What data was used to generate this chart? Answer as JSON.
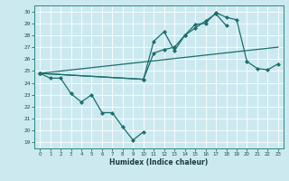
{
  "xlabel": "Humidex (Indice chaleur)",
  "background_color": "#cce9f0",
  "grid_color": "#ffffff",
  "line_color": "#1a6e6a",
  "xlim": [
    -0.5,
    23.5
  ],
  "ylim": [
    18.5,
    30.5
  ],
  "yticks": [
    19,
    20,
    21,
    22,
    23,
    24,
    25,
    26,
    27,
    28,
    29,
    30
  ],
  "xticks": [
    0,
    1,
    2,
    3,
    4,
    5,
    6,
    7,
    8,
    9,
    10,
    11,
    12,
    13,
    14,
    15,
    16,
    17,
    18,
    19,
    20,
    21,
    22,
    23
  ],
  "line1_x": [
    0,
    1,
    2,
    3,
    4,
    5,
    6,
    7,
    8,
    9,
    10
  ],
  "line1_y": [
    24.8,
    24.4,
    24.4,
    23.1,
    22.4,
    23.0,
    21.5,
    21.5,
    20.3,
    19.2,
    19.9
  ],
  "line2_x": [
    0,
    10,
    11,
    12,
    13,
    14,
    15,
    16,
    17,
    18
  ],
  "line2_y": [
    24.8,
    24.3,
    26.5,
    26.8,
    27.0,
    28.0,
    28.6,
    29.2,
    29.8,
    28.8
  ],
  "line3_x": [
    0,
    10,
    11,
    12,
    13,
    14,
    15,
    16,
    17,
    18,
    19,
    20,
    21,
    22,
    23
  ],
  "line3_y": [
    24.8,
    24.3,
    27.5,
    28.3,
    26.7,
    28.0,
    28.9,
    29.0,
    29.9,
    29.5,
    29.3,
    25.8,
    25.2,
    25.1,
    25.6
  ],
  "line4_x": [
    0,
    23
  ],
  "line4_y": [
    24.8,
    27.0
  ]
}
